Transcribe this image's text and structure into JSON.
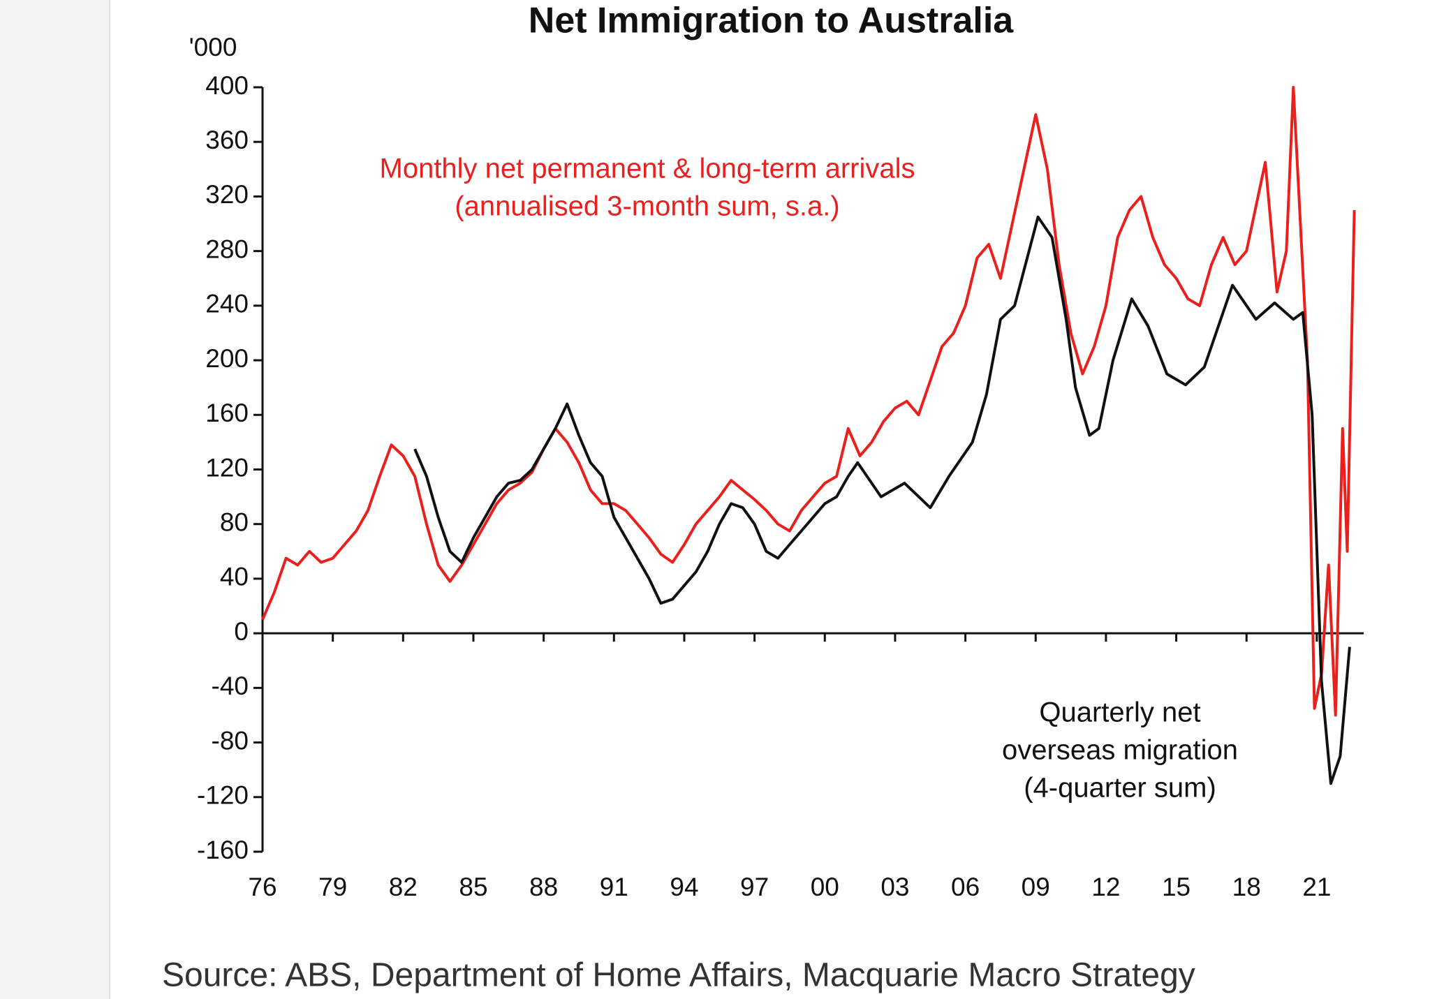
{
  "chart_data": {
    "type": "line",
    "title": "Net Immigration to Australia",
    "y_unit_label": "'000",
    "source": "Source: ABS, Department of Home Affairs, Macquarie Macro Strategy",
    "annotations": [
      {
        "lines": [
          "Monthly net permanent & long-term arrivals",
          "(annualised 3-month sum, s.a.)"
        ],
        "color": "#e8211f"
      },
      {
        "lines": [
          "Quarterly net",
          "overseas migration",
          "(4-quarter sum)"
        ],
        "color": "#111111"
      }
    ],
    "xlim": [
      1976,
      2023
    ],
    "ylim": [
      -160,
      400
    ],
    "yticks": [
      -160,
      -120,
      -80,
      -40,
      0,
      40,
      80,
      120,
      160,
      200,
      240,
      280,
      320,
      360,
      400
    ],
    "xticks": [
      {
        "value": 1976,
        "label": "76"
      },
      {
        "value": 1979,
        "label": "79"
      },
      {
        "value": 1982,
        "label": "82"
      },
      {
        "value": 1985,
        "label": "85"
      },
      {
        "value": 1988,
        "label": "88"
      },
      {
        "value": 1991,
        "label": "91"
      },
      {
        "value": 1994,
        "label": "94"
      },
      {
        "value": 1997,
        "label": "97"
      },
      {
        "value": 2000,
        "label": "00"
      },
      {
        "value": 2003,
        "label": "03"
      },
      {
        "value": 2006,
        "label": "06"
      },
      {
        "value": 2009,
        "label": "09"
      },
      {
        "value": 2012,
        "label": "12"
      },
      {
        "value": 2015,
        "label": "15"
      },
      {
        "value": 2018,
        "label": "18"
      },
      {
        "value": 2021,
        "label": "21"
      }
    ],
    "series": [
      {
        "color": "#e8211f",
        "x": [
          1976,
          1976.5,
          1977,
          1977.5,
          1978,
          1978.5,
          1979,
          1979.5,
          1980,
          1980.5,
          1981,
          1981.5,
          1982,
          1982.5,
          1983,
          1983.5,
          1984,
          1984.5,
          1985,
          1985.5,
          1986,
          1986.5,
          1987,
          1987.5,
          1988,
          1988.5,
          1989,
          1989.5,
          1990,
          1990.5,
          1991,
          1991.5,
          1992,
          1992.5,
          1993,
          1993.5,
          1994,
          1994.5,
          1995,
          1995.5,
          1996,
          1996.5,
          1997,
          1997.5,
          1998,
          1998.5,
          1999,
          1999.5,
          2000,
          2000.5,
          2001,
          2001.5,
          2002,
          2002.5,
          2003,
          2003.5,
          2004,
          2004.5,
          2005,
          2005.5,
          2006,
          2006.5,
          2007,
          2007.5,
          2008,
          2008.5,
          2009,
          2009.5,
          2010,
          2010.5,
          2011,
          2011.5,
          2012,
          2012.5,
          2013,
          2013.5,
          2014,
          2014.5,
          2015,
          2015.5,
          2016,
          2016.5,
          2017,
          2017.5,
          2018,
          2018.8,
          2019.3,
          2019.7,
          2020,
          2020.3,
          2020.6,
          2020.9,
          2021.2,
          2021.5,
          2021.8,
          2022.1,
          2022.3,
          2022.6
        ],
        "values": [
          10,
          30,
          55,
          50,
          60,
          52,
          55,
          65,
          75,
          90,
          115,
          138,
          130,
          115,
          80,
          50,
          38,
          50,
          65,
          80,
          95,
          105,
          110,
          118,
          135,
          150,
          140,
          125,
          105,
          95,
          95,
          90,
          80,
          70,
          58,
          52,
          65,
          80,
          90,
          100,
          112,
          105,
          98,
          90,
          80,
          75,
          90,
          100,
          110,
          115,
          150,
          130,
          140,
          155,
          165,
          170,
          160,
          185,
          210,
          220,
          240,
          275,
          285,
          260,
          300,
          340,
          380,
          340,
          270,
          220,
          190,
          210,
          240,
          290,
          310,
          320,
          290,
          270,
          260,
          245,
          240,
          270,
          290,
          270,
          280,
          345,
          250,
          280,
          400,
          300,
          200,
          -55,
          -30,
          50,
          -60,
          150,
          60,
          310
        ]
      },
      {
        "color": "#111111",
        "x": [
          1982.5,
          1983,
          1983.5,
          1984,
          1984.5,
          1985,
          1985.5,
          1986,
          1986.5,
          1987,
          1987.5,
          1988,
          1988.5,
          1989,
          1989.5,
          1990,
          1990.5,
          1991,
          1991.5,
          1992,
          1992.5,
          1993,
          1993.5,
          1994,
          1994.5,
          1995,
          1995.5,
          1996,
          1996.5,
          1997,
          1997.5,
          1998,
          1998.5,
          1999,
          1999.5,
          2000,
          2000.5,
          2001,
          2001.4,
          2002.4,
          2003.4,
          2004.5,
          2005.3,
          2006.3,
          2006.9,
          2007.5,
          2008.1,
          2009.1,
          2009.7,
          2010.3,
          2010.7,
          2011.3,
          2011.7,
          2012.3,
          2013.1,
          2013.8,
          2014.6,
          2015.4,
          2016.2,
          2017.4,
          2018.4,
          2019.2,
          2020.0,
          2020.4,
          2020.8,
          2021.2,
          2021.6,
          2022.0,
          2022.4
        ],
        "values": [
          135,
          115,
          85,
          60,
          52,
          70,
          85,
          100,
          110,
          112,
          120,
          135,
          150,
          168,
          145,
          125,
          115,
          85,
          70,
          55,
          40,
          22,
          25,
          35,
          45,
          60,
          80,
          95,
          92,
          80,
          60,
          55,
          65,
          75,
          85,
          95,
          100,
          115,
          125,
          100,
          110,
          92,
          115,
          140,
          175,
          230,
          240,
          305,
          290,
          230,
          180,
          145,
          150,
          200,
          245,
          225,
          190,
          182,
          195,
          255,
          230,
          242,
          230,
          235,
          160,
          -35,
          -110,
          -90,
          -10
        ]
      }
    ]
  }
}
